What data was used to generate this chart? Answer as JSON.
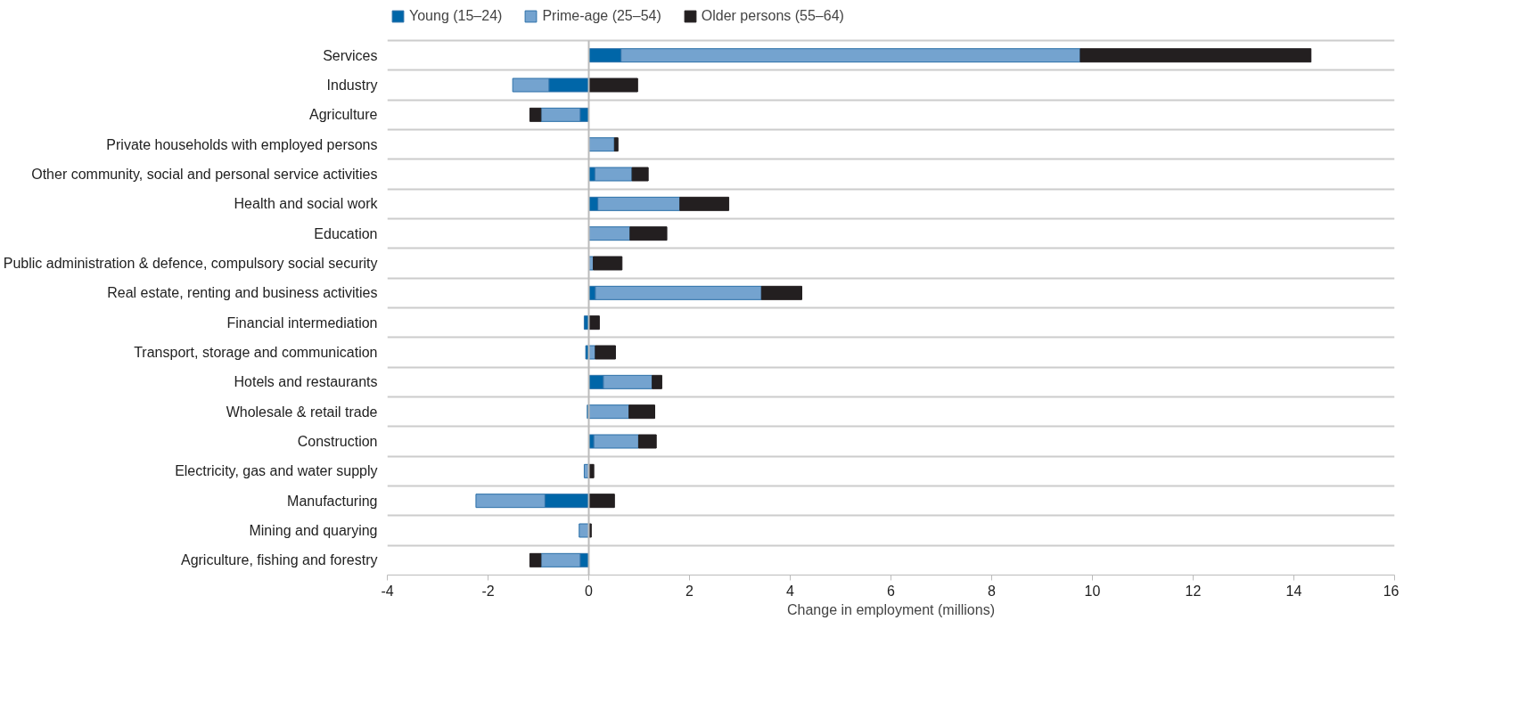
{
  "chart_data": {
    "type": "bar",
    "orientation": "horizontal",
    "stacked": true,
    "xlabel": "Change in employment (millions)",
    "categories": [
      "Services",
      "Industry",
      "Agriculture",
      "Private households with employed persons",
      "Other community, social and personal service activities",
      "Health and social work",
      "Education",
      "Public administration & defence, compulsory social security",
      "Real estate, renting and business activities",
      "Financial intermediation",
      "Transport, storage and communication",
      "Hotels and restaurants",
      "Wholesale & retail trade",
      "Construction",
      "Electricity, gas and water supply",
      "Manufacturing",
      "Mining and quarying",
      "Agriculture, fishing and forestry"
    ],
    "series": [
      {
        "name": "Young (15–24)",
        "color": "#0066a8",
        "values": [
          0.64,
          -0.79,
          -0.17,
          null,
          0.12,
          0.18,
          null,
          null,
          0.13,
          -0.09,
          -0.06,
          0.29,
          -0.03,
          0.1,
          0,
          -0.87,
          0,
          -0.17
        ]
      },
      {
        "name": "Prime-age (25–54)",
        "color": "#74a3cf",
        "values": [
          9.12,
          -0.72,
          -0.78,
          0.51,
          0.74,
          1.63,
          0.82,
          0.09,
          3.3,
          0,
          0.13,
          0.97,
          0.8,
          0.89,
          -0.09,
          -1.37,
          -0.19,
          -0.78
        ]
      },
      {
        "name": "Older persons (55–64)",
        "color": "#231f20",
        "values": [
          4.58,
          0.97,
          -0.22,
          0.07,
          0.32,
          0.97,
          0.73,
          0.57,
          0.8,
          0.21,
          0.4,
          0.19,
          0.51,
          0.35,
          0.1,
          0.51,
          0.05,
          -0.22
        ]
      }
    ],
    "xlim": [
      -4,
      16
    ],
    "xticks": [
      -4,
      -2,
      0,
      2,
      4,
      6,
      8,
      10,
      12,
      14,
      16
    ],
    "grid": "y",
    "legend": "top left"
  }
}
